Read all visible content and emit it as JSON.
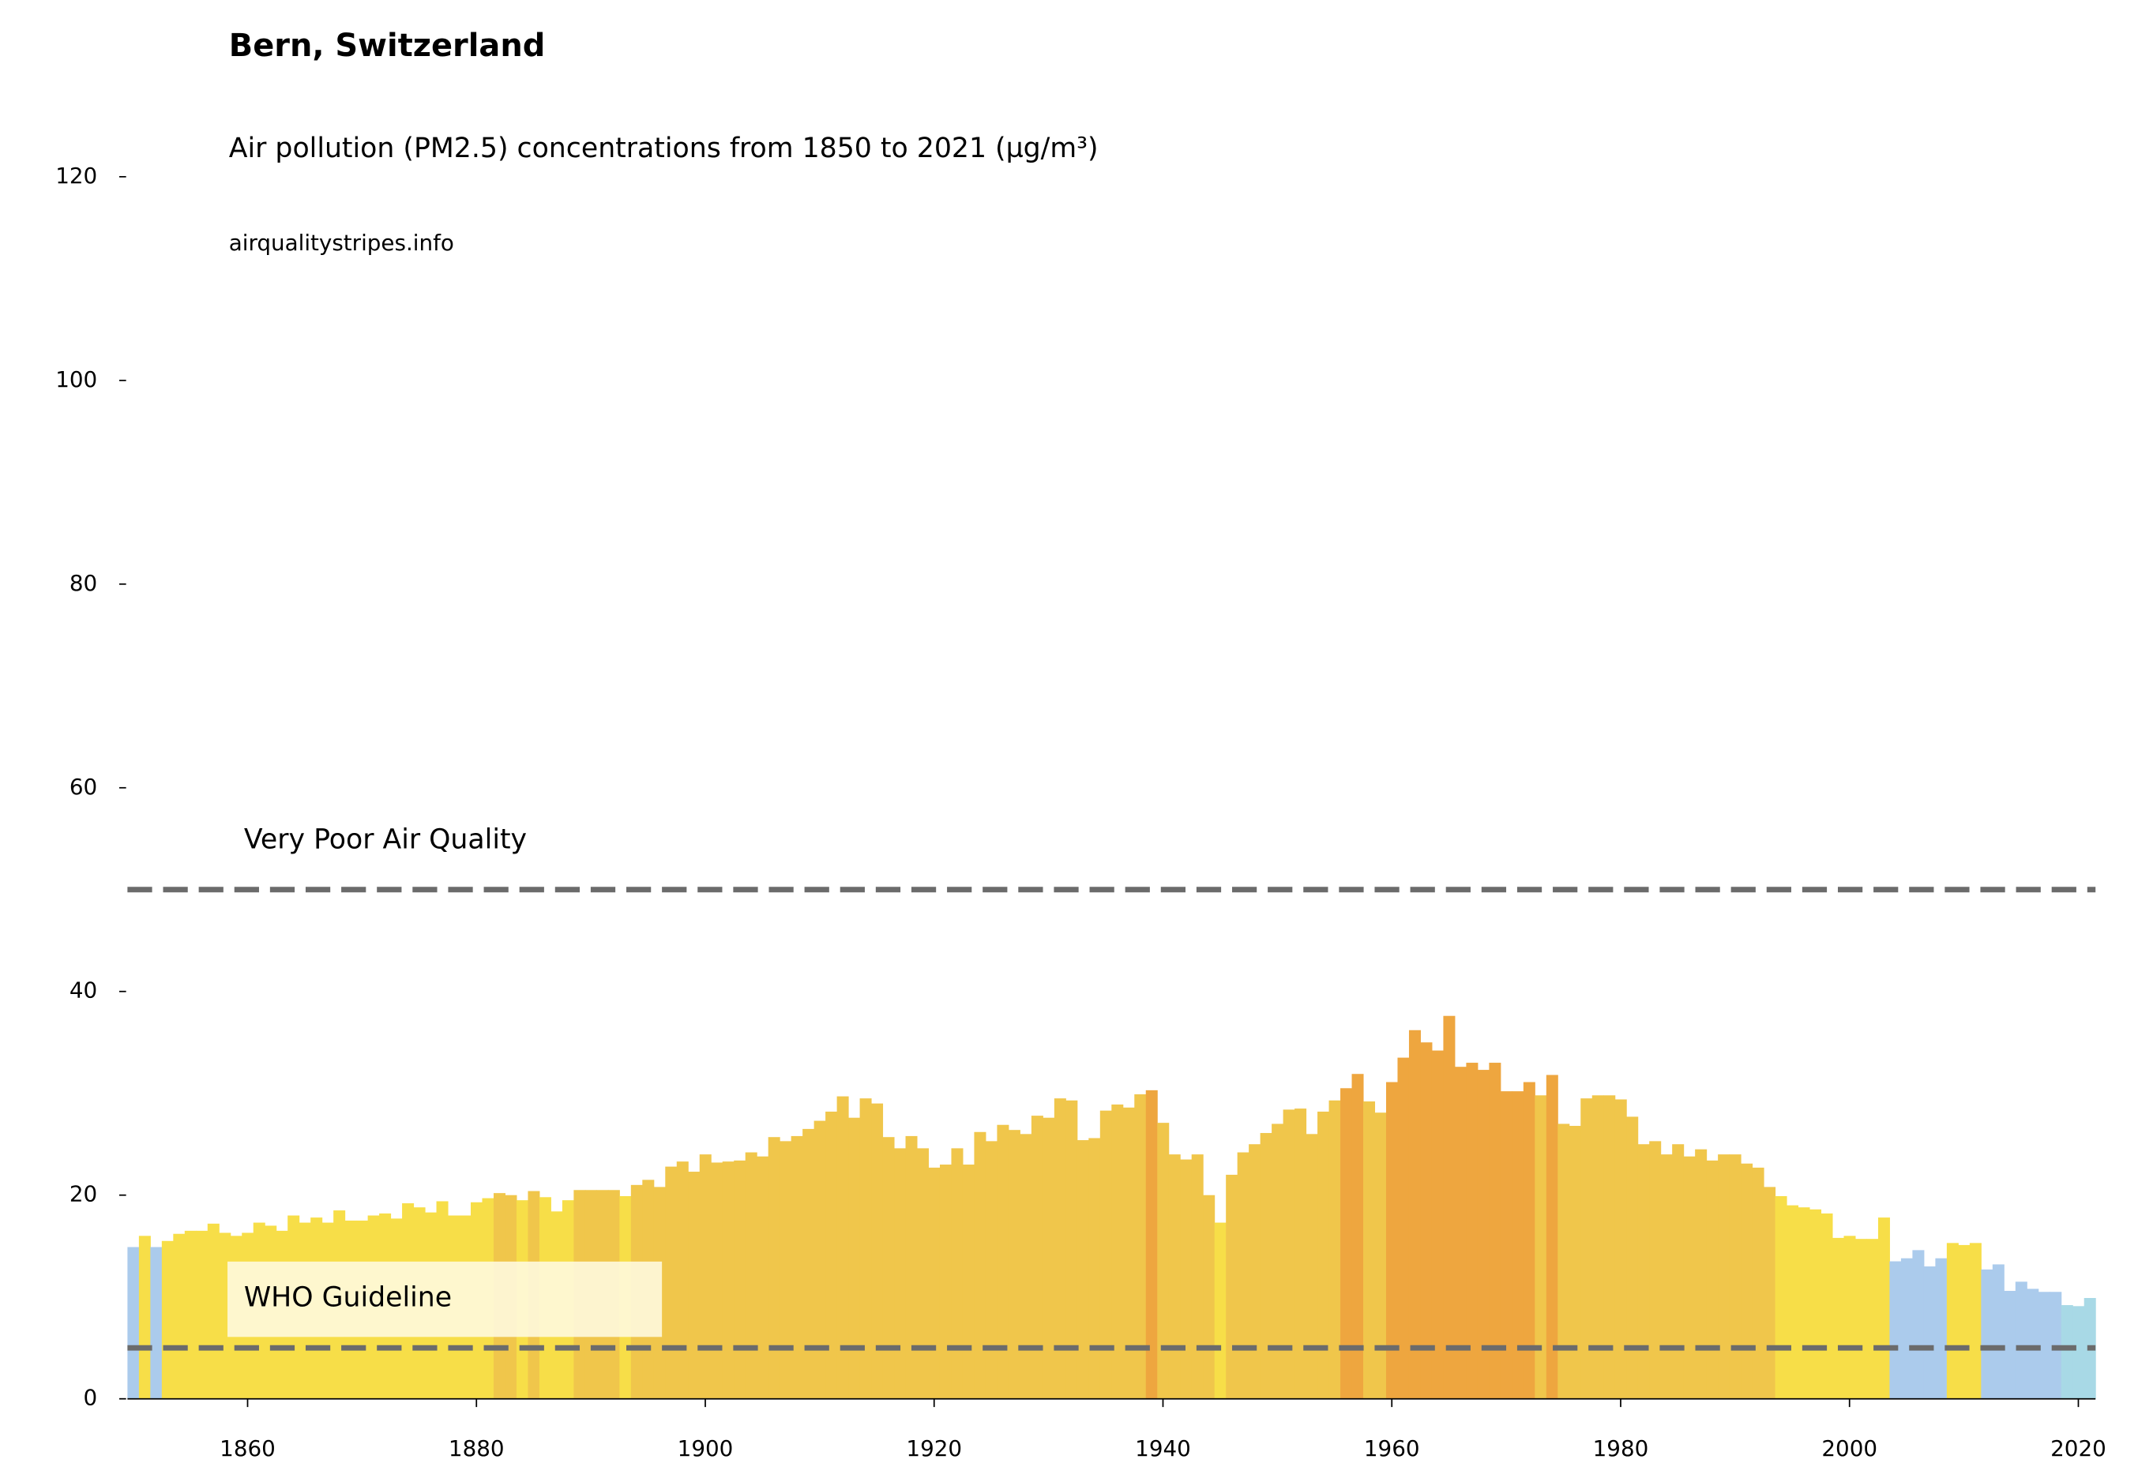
{
  "chart_data": {
    "type": "bar",
    "title": "Bern, Switzerland",
    "subtitle": "Air pollution (PM2.5) concentrations from 1850 to 2021 (µg/m³)",
    "source": "airqualitystripes.info",
    "x": [
      1850,
      1851,
      1852,
      1853,
      1854,
      1855,
      1856,
      1857,
      1858,
      1859,
      1860,
      1861,
      1862,
      1863,
      1864,
      1865,
      1866,
      1867,
      1868,
      1869,
      1870,
      1871,
      1872,
      1873,
      1874,
      1875,
      1876,
      1877,
      1878,
      1879,
      1880,
      1881,
      1882,
      1883,
      1884,
      1885,
      1886,
      1887,
      1888,
      1889,
      1890,
      1891,
      1892,
      1893,
      1894,
      1895,
      1896,
      1897,
      1898,
      1899,
      1900,
      1901,
      1902,
      1903,
      1904,
      1905,
      1906,
      1907,
      1908,
      1909,
      1910,
      1911,
      1912,
      1913,
      1914,
      1915,
      1916,
      1917,
      1918,
      1919,
      1920,
      1921,
      1922,
      1923,
      1924,
      1925,
      1926,
      1927,
      1928,
      1929,
      1930,
      1931,
      1932,
      1933,
      1934,
      1935,
      1936,
      1937,
      1938,
      1939,
      1940,
      1941,
      1942,
      1943,
      1944,
      1945,
      1946,
      1947,
      1948,
      1949,
      1950,
      1951,
      1952,
      1953,
      1954,
      1955,
      1956,
      1957,
      1958,
      1959,
      1960,
      1961,
      1962,
      1963,
      1964,
      1965,
      1966,
      1967,
      1968,
      1969,
      1970,
      1971,
      1972,
      1973,
      1974,
      1975,
      1976,
      1977,
      1978,
      1979,
      1980,
      1981,
      1982,
      1983,
      1984,
      1985,
      1986,
      1987,
      1988,
      1989,
      1990,
      1991,
      1992,
      1993,
      1994,
      1995,
      1996,
      1997,
      1998,
      1999,
      2000,
      2001,
      2002,
      2003,
      2004,
      2005,
      2006,
      2007,
      2008,
      2009,
      2010,
      2011,
      2012,
      2013,
      2014,
      2015,
      2016,
      2017,
      2018,
      2019,
      2020,
      2021
    ],
    "values": [
      14.9,
      16,
      14.9,
      15.5,
      16.2,
      16.5,
      16.5,
      17.2,
      16.3,
      16,
      16.3,
      17.3,
      17,
      16.5,
      18,
      17.3,
      17.8,
      17.3,
      18.5,
      17.5,
      17.5,
      18,
      18.2,
      17.7,
      19.2,
      18.8,
      18.3,
      19.4,
      18,
      18,
      19.3,
      19.7,
      20.2,
      20,
      19.5,
      20.4,
      19.8,
      18.4,
      19.5,
      20.5,
      20.5,
      20.5,
      20.5,
      19.9,
      21,
      21.5,
      20.8,
      22.8,
      23.3,
      22.3,
      24,
      23.2,
      23.3,
      23.4,
      24.2,
      23.8,
      25.7,
      25.3,
      25.8,
      26.5,
      27.3,
      28.2,
      29.7,
      27.6,
      29.5,
      29,
      25.7,
      24.6,
      25.8,
      24.6,
      22.7,
      23,
      24.6,
      23,
      26.2,
      25.3,
      26.9,
      26.4,
      26,
      27.8,
      27.6,
      29.5,
      29.3,
      25.4,
      25.6,
      28.3,
      28.9,
      28.6,
      29.9,
      30.3,
      27.1,
      24,
      23.5,
      24,
      20,
      17.3,
      22,
      24.2,
      25,
      26.1,
      27,
      28.4,
      28.5,
      26,
      28.2,
      29.3,
      30.5,
      31.9,
      29.2,
      28.1,
      31.1,
      33.5,
      36.2,
      35,
      34.2,
      37.6,
      32.6,
      33,
      32.3,
      33,
      30.2,
      30.2,
      31.1,
      29.8,
      31.8,
      27,
      26.8,
      29.5,
      29.8,
      29.8,
      29.4,
      27.7,
      25,
      25.3,
      24,
      25,
      23.8,
      24.5,
      23.4,
      24,
      24,
      23.1,
      22.7,
      20.8,
      19.9,
      19,
      18.8,
      18.6,
      18.2,
      15.8,
      16,
      15.7,
      15.7,
      17.8,
      13.5,
      13.8,
      14.6,
      13,
      13.8,
      15.3,
      15.1,
      15.3,
      12.7,
      13.2,
      10.6,
      11.5,
      10.8,
      10.5,
      10.5,
      9.2,
      9.1,
      9.9
    ],
    "colors": [
      "#abcbec",
      "#f7de48",
      "#abcbec",
      "#f7de48",
      "#f7de48",
      "#f7de48",
      "#f7de48",
      "#f7de48",
      "#f7de48",
      "#f7de48",
      "#f7de48",
      "#f7de48",
      "#f7de48",
      "#f7de48",
      "#f7de48",
      "#f7de48",
      "#f7de48",
      "#f7de48",
      "#f7de48",
      "#f7de48",
      "#f7de48",
      "#f7de48",
      "#f7de48",
      "#f7de48",
      "#f7de48",
      "#f7de48",
      "#f7de48",
      "#f7de48",
      "#f7de48",
      "#f7de48",
      "#f7de48",
      "#f7de48",
      "#f0c64b",
      "#f0c64b",
      "#f7de48",
      "#f0c64b",
      "#f7de48",
      "#f7de48",
      "#f7de48",
      "#f0c64b",
      "#f0c64b",
      "#f0c64b",
      "#f0c64b",
      "#f7de48",
      "#f0c64b",
      "#f0c64b",
      "#f0c64b",
      "#f0c64b",
      "#f0c64b",
      "#f0c64b",
      "#f0c64b",
      "#f0c64b",
      "#f0c64b",
      "#f0c64b",
      "#f0c64b",
      "#f0c64b",
      "#f0c64b",
      "#f0c64b",
      "#f0c64b",
      "#f0c64b",
      "#f0c64b",
      "#f0c64b",
      "#f0c64b",
      "#f0c64b",
      "#f0c64b",
      "#f0c64b",
      "#f0c64b",
      "#f0c64b",
      "#f0c64b",
      "#f0c64b",
      "#f0c64b",
      "#f0c64b",
      "#f0c64b",
      "#f0c64b",
      "#f0c64b",
      "#f0c64b",
      "#f0c64b",
      "#f0c64b",
      "#f0c64b",
      "#f0c64b",
      "#f0c64b",
      "#f0c64b",
      "#f0c64b",
      "#f0c64b",
      "#f0c64b",
      "#f0c64b",
      "#f0c64b",
      "#f0c64b",
      "#f0c64b",
      "#eea63f",
      "#f0c64b",
      "#f0c64b",
      "#f0c64b",
      "#f0c64b",
      "#f0c64b",
      "#f7de48",
      "#f0c64b",
      "#f0c64b",
      "#f0c64b",
      "#f0c64b",
      "#f0c64b",
      "#f0c64b",
      "#f0c64b",
      "#f0c64b",
      "#f0c64b",
      "#f0c64b",
      "#eea63f",
      "#eea63f",
      "#f0c64b",
      "#f0c64b",
      "#eea63f",
      "#eea63f",
      "#eea63f",
      "#eea63f",
      "#eea63f",
      "#eea63f",
      "#eea63f",
      "#eea63f",
      "#eea63f",
      "#eea63f",
      "#eea63f",
      "#eea63f",
      "#eea63f",
      "#f0c64b",
      "#eea63f",
      "#f0c64b",
      "#f0c64b",
      "#f0c64b",
      "#f0c64b",
      "#f0c64b",
      "#f0c64b",
      "#f0c64b",
      "#f0c64b",
      "#f0c64b",
      "#f0c64b",
      "#f0c64b",
      "#f0c64b",
      "#f0c64b",
      "#f0c64b",
      "#f0c64b",
      "#f0c64b",
      "#f0c64b",
      "#f0c64b",
      "#f0c64b",
      "#f7de48",
      "#f7de48",
      "#f7de48",
      "#f7de48",
      "#f7de48",
      "#f7de48",
      "#f7de48",
      "#f7de48",
      "#f7de48",
      "#f7de48",
      "#abcbec",
      "#abcbec",
      "#abcbec",
      "#abcbec",
      "#abcbec",
      "#f7de48",
      "#f7de48",
      "#f7de48",
      "#abcbec",
      "#abcbec",
      "#abcbec",
      "#abcbec",
      "#abcbec",
      "#abcbec",
      "#abcbec",
      "#a8d9e6",
      "#a8d9e6",
      "#a8d9e6"
    ],
    "reference_lines": [
      {
        "value": 50,
        "label": "Very Poor Air Quality"
      },
      {
        "value": 5,
        "label": "WHO Guideline"
      }
    ],
    "xlim": [
      1849.5,
      2021.5
    ],
    "xticks": [
      1860,
      1880,
      1900,
      1920,
      1940,
      1960,
      1980,
      2000,
      2020
    ],
    "ylim": [
      0,
      120
    ],
    "yticks": [
      0,
      20,
      40,
      60,
      80,
      100,
      120
    ]
  }
}
